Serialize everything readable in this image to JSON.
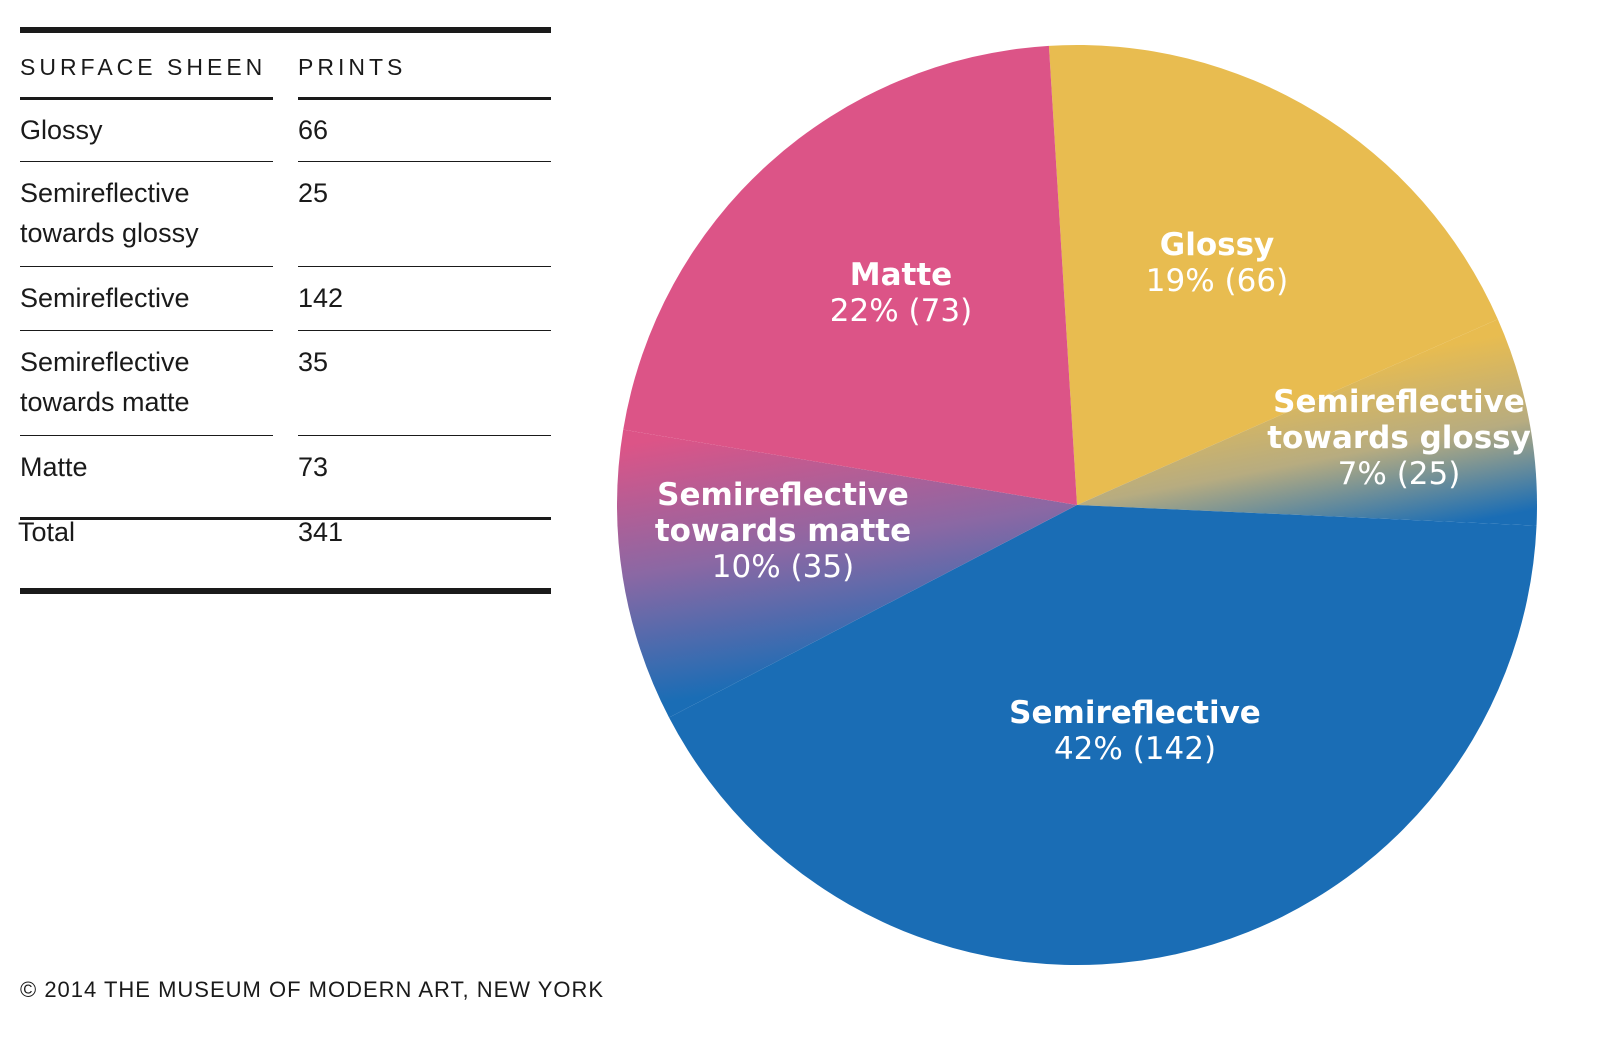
{
  "table": {
    "headers": [
      "SURFACE SHEEN",
      "PRINTS"
    ],
    "rows": [
      {
        "label": "Glossy",
        "value": "66"
      },
      {
        "label": "Semireflective towards glossy",
        "value": "25"
      },
      {
        "label": "Semireflective",
        "value": "142"
      },
      {
        "label": "Semireflective towards matte",
        "value": "35"
      },
      {
        "label": "Matte",
        "value": "73"
      }
    ],
    "total": {
      "label": "Total",
      "value": "341"
    }
  },
  "chart_data": {
    "type": "pie",
    "title": "",
    "total": 341,
    "slices": [
      {
        "name": "Glossy",
        "value": 66,
        "percent": 19,
        "label": "19% (66)",
        "color": "#E8BC50"
      },
      {
        "name": "Semireflective towards glossy",
        "value": 25,
        "percent": 7,
        "label": "7% (25)",
        "color": "#B7AC80"
      },
      {
        "name": "Semireflective",
        "value": 142,
        "percent": 42,
        "label": "42% (142)",
        "color": "#1A6DB5"
      },
      {
        "name": "Semireflective towards matte",
        "value": 35,
        "percent": 10,
        "label": "10% (35)",
        "color": "#8A68A4"
      },
      {
        "name": "Matte",
        "value": 73,
        "percent": 22,
        "label": "22% (73)",
        "color": "#DC5487"
      }
    ],
    "start_angle_deg": -3.5,
    "direction": "clockwise",
    "legend": "none"
  },
  "footer": {
    "copyright": "© 2014 THE MUSEUM OF MODERN ART, NEW YORK"
  }
}
